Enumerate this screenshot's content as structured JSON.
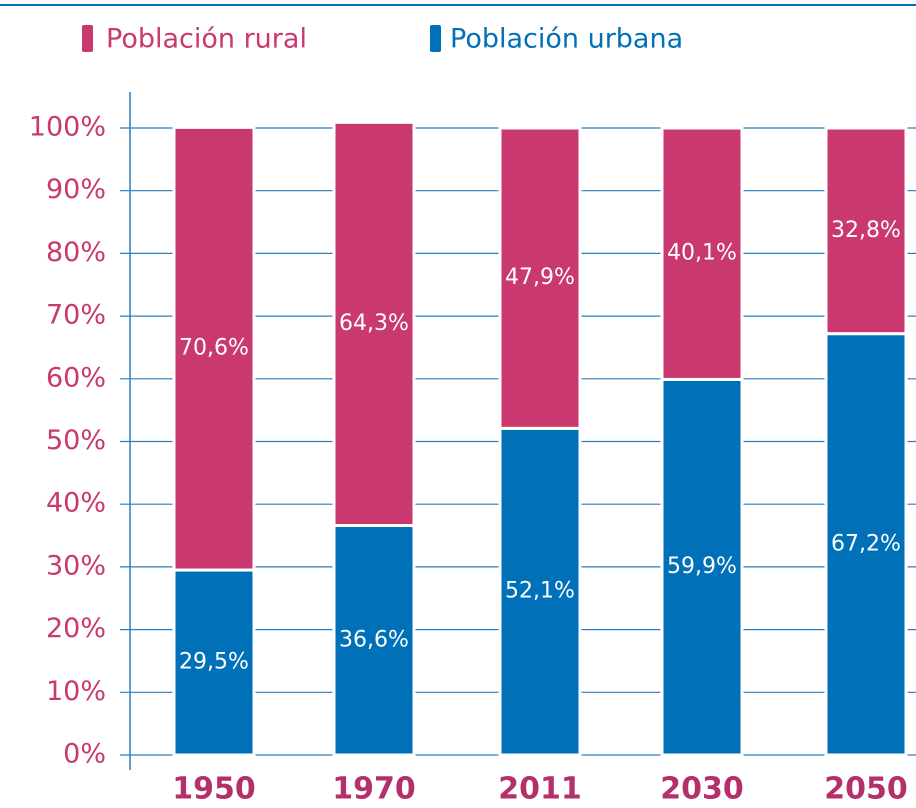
{
  "chart_data": {
    "type": "stacked_bar",
    "categories": [
      "1950",
      "1970",
      "2011",
      "2030",
      "2050"
    ],
    "series": [
      {
        "name": "Población urbana",
        "color": "#0071b9",
        "values": [
          29.5,
          36.6,
          52.1,
          59.9,
          67.2
        ],
        "value_labels": [
          "29,5%",
          "36,6%",
          "52,1%",
          "59,9%",
          "67,2%"
        ]
      },
      {
        "name": "Población rural",
        "color": "#c9386f",
        "values": [
          70.6,
          64.3,
          47.9,
          40.1,
          32.8
        ],
        "value_labels": [
          "70,6%",
          "64,3%",
          "47,9%",
          "40,1%",
          "32,8%"
        ]
      }
    ],
    "ylim": [
      0,
      100
    ],
    "yticks": [
      {
        "value": 0,
        "label": "0%"
      },
      {
        "value": 10,
        "label": "10%"
      },
      {
        "value": 20,
        "label": "20%"
      },
      {
        "value": 30,
        "label": "30%"
      },
      {
        "value": 40,
        "label": "40%"
      },
      {
        "value": 50,
        "label": "50%"
      },
      {
        "value": 60,
        "label": "60%"
      },
      {
        "value": 70,
        "label": "70%"
      },
      {
        "value": 80,
        "label": "80%"
      },
      {
        "value": 90,
        "label": "90%"
      },
      {
        "value": 100,
        "label": "100%"
      }
    ],
    "grid": true
  }
}
